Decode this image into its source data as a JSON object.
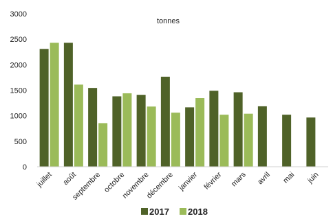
{
  "chart_data": {
    "type": "bar",
    "annotation": "tonnes",
    "categories": [
      "juillet",
      "août",
      "septembre",
      "octobre",
      "novembre",
      "décembre",
      "janvier",
      "février",
      "mars",
      "avril",
      "mai",
      "juin"
    ],
    "series": [
      {
        "name": "2017",
        "color": "#4F6228",
        "values": [
          2310,
          2430,
          1545,
          1380,
          1410,
          1765,
          1165,
          1490,
          1460,
          1185,
          1020,
          965
        ]
      },
      {
        "name": "2018",
        "color": "#9BBB59",
        "values": [
          2430,
          1610,
          855,
          1440,
          1180,
          1060,
          1345,
          1020,
          1040,
          null,
          null,
          null
        ]
      }
    ],
    "yticks": [
      0,
      500,
      1000,
      1500,
      2000,
      2500,
      3000
    ],
    "ylim": [
      0,
      3000
    ],
    "legend": "bottom",
    "grid": false
  }
}
